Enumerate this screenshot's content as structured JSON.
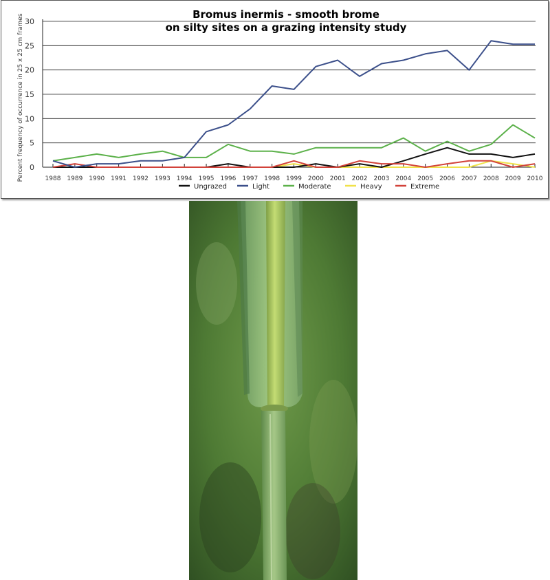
{
  "chart_data": {
    "type": "line",
    "title": "Bromus inermis  -  smooth brome",
    "subtitle": "on silty sites on a grazing intensity study",
    "ylabel": "Percent frequency of occurrence in 25 x 25 cm frames",
    "xlabel": "",
    "x": [
      1988,
      1989,
      1990,
      1991,
      1992,
      1993,
      1994,
      1995,
      1996,
      1997,
      1998,
      1999,
      2000,
      2001,
      2002,
      2003,
      2004,
      2005,
      2006,
      2007,
      2008,
      2009,
      2010
    ],
    "ylim": [
      0,
      30
    ],
    "yticks": [
      0,
      5,
      10,
      15,
      20,
      25,
      30
    ],
    "grid": "horizontal",
    "legend_position": "bottom",
    "series": [
      {
        "name": "Ungrazed",
        "color": "#111111",
        "values": [
          0,
          0,
          0,
          0,
          0,
          0,
          0,
          0,
          0.7,
          0,
          0,
          0,
          0.7,
          0,
          0.7,
          0,
          1.3,
          2.7,
          4,
          2.7,
          2.7,
          2,
          2.7
        ]
      },
      {
        "name": "Light",
        "color": "#3b4f8a",
        "values": [
          1.3,
          0,
          0.7,
          0.7,
          1.3,
          1.3,
          2,
          7.3,
          8.7,
          12,
          16.7,
          16,
          20.7,
          22,
          18.7,
          21.3,
          22,
          23.3,
          24,
          20,
          26,
          25.3,
          25.3
        ]
      },
      {
        "name": "Moderate",
        "color": "#5cb14a",
        "values": [
          1.3,
          2,
          2.7,
          2,
          2.7,
          3.3,
          2,
          2,
          4.7,
          3.3,
          3.3,
          2.7,
          4,
          4,
          4,
          4,
          6,
          3.3,
          5.3,
          3.3,
          4.7,
          8.7,
          6
        ]
      },
      {
        "name": "Heavy",
        "color": "#f0e24a",
        "values": [
          0,
          0,
          0,
          0,
          0,
          0,
          0,
          0,
          0,
          0,
          0,
          0.7,
          0,
          0,
          0,
          0,
          0,
          0,
          0,
          0,
          1.3,
          0.7,
          0
        ]
      },
      {
        "name": "Extreme",
        "color": "#d2423a",
        "values": [
          0,
          0.7,
          0,
          0,
          0,
          0,
          0,
          0,
          0,
          0,
          0,
          1.3,
          0,
          0,
          1.3,
          0.7,
          0.7,
          0,
          0.7,
          1.3,
          1.3,
          0,
          0.7
        ]
      }
    ]
  },
  "photo": {
    "subject": "grass-stem-photo",
    "colors": {
      "background": "#4a7a32",
      "stem": "#a6c85a",
      "leaf": "#8cb86a"
    }
  }
}
